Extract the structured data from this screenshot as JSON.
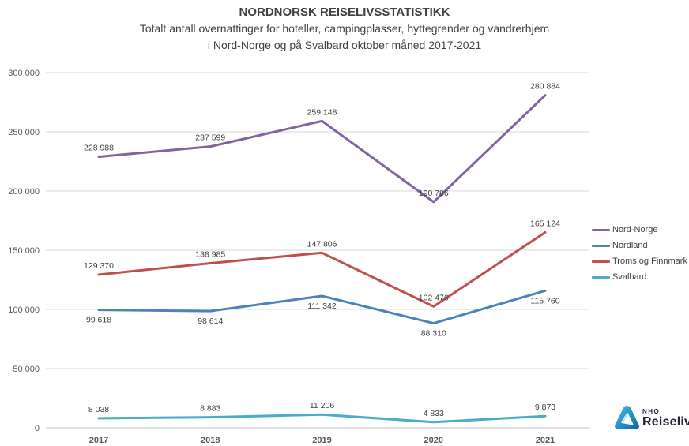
{
  "header": {
    "title": "NORDNORSK REISELIVSSTATISTIKK",
    "subtitle_line1": "Totalt antall overnattinger for hoteller, campingplasser, hyttegrender og vandrerhjem",
    "subtitle_line2": "i Nord-Norge og på Svalbard oktober måned 2017-2021"
  },
  "chart_data": {
    "type": "line",
    "title": "NORDNORSK REISELIVSSTATISTIKK",
    "subtitle": "Totalt antall overnattinger for hoteller, campingplasser, hyttegrender og vandrerhjem i Nord-Norge og på Svalbard oktober måned 2017-2021",
    "categories": [
      "2017",
      "2018",
      "2019",
      "2020",
      "2021"
    ],
    "series": [
      {
        "name": "Nord-Norge",
        "color": "#8064A2",
        "values": [
          228988,
          237599,
          259148,
          190786,
          280884
        ],
        "labels": [
          "228 988",
          "237 599",
          "259 148",
          "190 786",
          "280 884"
        ],
        "label_position": "above"
      },
      {
        "name": "Nordland",
        "color": "#4F81BD",
        "values": [
          99618,
          98614,
          111342,
          88310,
          115760
        ],
        "labels": [
          "99 618",
          "98 614",
          "111 342",
          "88 310",
          "115 760"
        ],
        "label_position": "below"
      },
      {
        "name": "Troms og Finnmark",
        "color": "#C0504D",
        "values": [
          129370,
          138985,
          147806,
          102476,
          165124
        ],
        "labels": [
          "129 370",
          "138 985",
          "147 806",
          "102 476",
          "165 124"
        ],
        "label_position": "above"
      },
      {
        "name": "Svalbard",
        "color": "#4BACC6",
        "values": [
          8038,
          8883,
          11206,
          4833,
          9873
        ],
        "labels": [
          "8 038",
          "8 883",
          "11 206",
          "4 833",
          "9 873"
        ],
        "label_position": "above"
      }
    ],
    "y_ticks": [
      {
        "value": 0,
        "label": "0"
      },
      {
        "value": 50000,
        "label": "50 000"
      },
      {
        "value": 100000,
        "label": "100 000"
      },
      {
        "value": 150000,
        "label": "150 000"
      },
      {
        "value": 200000,
        "label": "200 000"
      },
      {
        "value": 250000,
        "label": "250 000"
      },
      {
        "value": 300000,
        "label": "300 000"
      }
    ],
    "ylim": [
      0,
      300000
    ],
    "grid": true,
    "legend_position": "right",
    "colors": {
      "grid": "#D9D9D9",
      "axis": "#BFBFBF",
      "tick_text": "#595959",
      "data_label_text": "#404040"
    }
  },
  "logo": {
    "brand_top": "NHO",
    "brand_bottom": "Reiseliv",
    "mark_color_light": "#45BCEA",
    "mark_color_dark": "#0C6BA6"
  }
}
